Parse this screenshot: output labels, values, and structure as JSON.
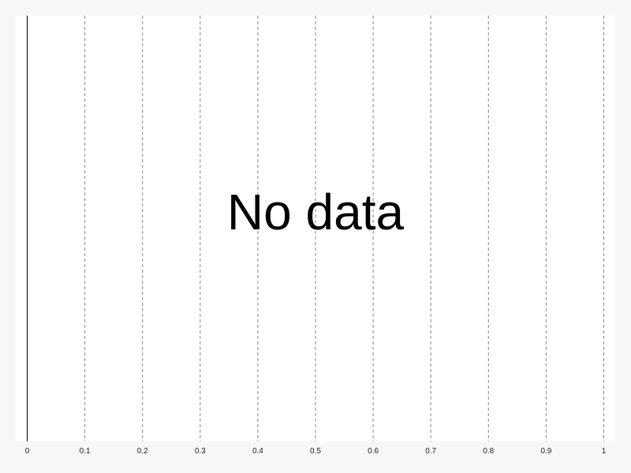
{
  "chart_data": {
    "type": "scatter",
    "title": "",
    "xlabel": "",
    "ylabel": "",
    "xlim": [
      0,
      1
    ],
    "x_ticks": [
      0,
      0.1,
      0.2,
      0.3,
      0.4,
      0.5,
      0.6,
      0.7,
      0.8,
      0.9,
      1
    ],
    "x_tick_labels": [
      "0",
      "0.1",
      "0.2",
      "0.3",
      "0.4",
      "0.5",
      "0.6",
      "0.7",
      "0.8",
      "0.9",
      "1"
    ],
    "grid": "vertical dashed",
    "series": [],
    "message": "No data"
  },
  "colors": {
    "page_background": "#f7f7f7",
    "plot_background": "#ffffff",
    "gridline": "#888888",
    "axis": "#000000",
    "text": "#000000"
  }
}
